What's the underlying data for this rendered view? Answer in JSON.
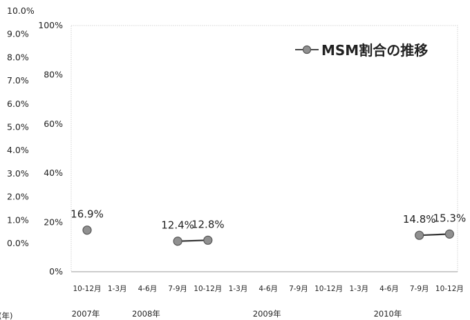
{
  "chart_data": {
    "type": "line",
    "legend": {
      "label": "MSM割合の推移",
      "placement": "top-right"
    },
    "y_primary": {
      "ylim": [
        0,
        100
      ],
      "ticks": [
        "0%",
        "20%",
        "40%",
        "60%",
        "80%",
        "100%"
      ]
    },
    "y_secondary": {
      "ylim": [
        0,
        10
      ],
      "ticks": [
        "0.0%",
        "1.0%",
        "2.0%",
        "3.0%",
        "4.0%",
        "5.0%",
        "6.0%",
        "7.0%",
        "8.0%",
        "9.0%",
        "10.0%"
      ]
    },
    "categories": [
      "10-12月",
      "1-3月",
      "4-6月",
      "7-9月",
      "10-12月",
      "1-3月",
      "4-6月",
      "7-9月",
      "10-12月",
      "1-3月",
      "4-6月",
      "7-9月",
      "10-12月"
    ],
    "years": [
      {
        "label": "2007年",
        "category_index": 0
      },
      {
        "label": "2008年",
        "category_index": 2
      },
      {
        "label": "2009年",
        "category_index": 6
      },
      {
        "label": "2010年",
        "category_index": 10
      }
    ],
    "series": [
      {
        "name": "MSM割合の推移",
        "color": "#909090",
        "values": [
          16.9,
          null,
          null,
          12.4,
          12.8,
          null,
          null,
          null,
          null,
          null,
          null,
          14.8,
          15.3
        ],
        "labels": [
          "16.9%",
          null,
          null,
          "12.4%",
          "12.8%",
          null,
          null,
          null,
          null,
          null,
          null,
          "14.8%",
          "15.3%"
        ]
      }
    ],
    "grid": false,
    "corner_text": "(年)"
  }
}
